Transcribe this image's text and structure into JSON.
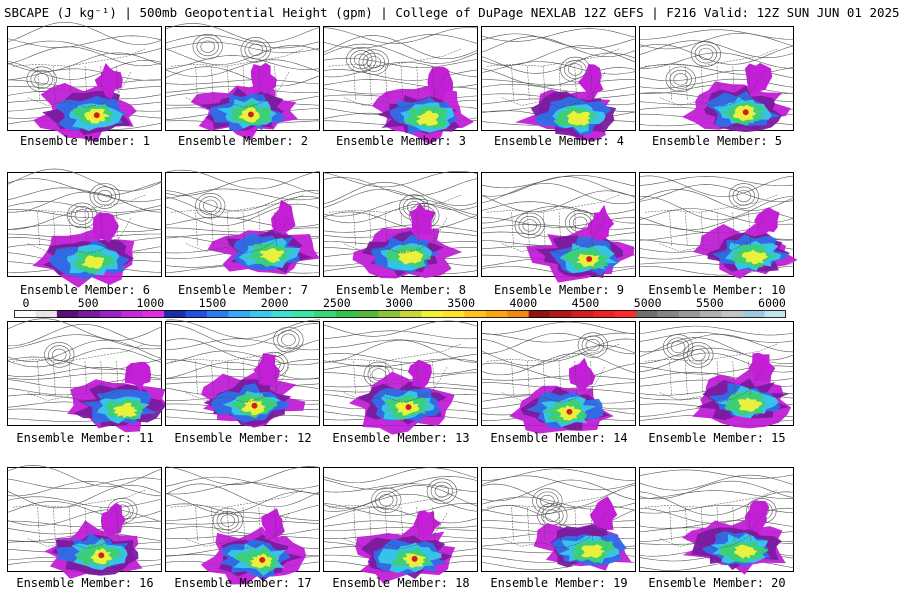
{
  "header": {
    "title": "SBCAPE (J kg⁻¹) | 500mb Geopotential Height (gpm) | College of DuPage NEXLAB 12Z GEFS | F216 Valid: 12Z SUN JUN 01 2025"
  },
  "colorbar": {
    "ticks": [
      "0",
      "500",
      "1000",
      "1500",
      "2000",
      "2500",
      "3000",
      "3500",
      "4000",
      "4500",
      "5000",
      "5500",
      "6000"
    ],
    "colors": [
      "#ffffff",
      "#e6e6e6",
      "#5a0f75",
      "#7a1aa0",
      "#9a22c6",
      "#c52ad8",
      "#e22ee3",
      "#1b2ea8",
      "#2450e0",
      "#2f7cf0",
      "#38a9f5",
      "#3cc8ee",
      "#3fe0d0",
      "#3ee3a6",
      "#3bd67a",
      "#34c44c",
      "#58b43a",
      "#8ec23a",
      "#c8d63a",
      "#f2f23a",
      "#ffe02a",
      "#ffc21e",
      "#ffa414",
      "#f08a12",
      "#8f1414",
      "#b31818",
      "#d21e1e",
      "#ea2424",
      "#ff2a2a",
      "#6e6e6e",
      "#848484",
      "#9a9a9a",
      "#b0b0b0",
      "#c4c4c4",
      "#9ec8dc",
      "#c4e2f0"
    ]
  },
  "panels": [
    {
      "label": "Ensemble Member: 1"
    },
    {
      "label": "Ensemble Member: 2"
    },
    {
      "label": "Ensemble Member: 3"
    },
    {
      "label": "Ensemble Member: 4"
    },
    {
      "label": "Ensemble Member: 5"
    },
    {
      "label": "Ensemble Member: 6"
    },
    {
      "label": "Ensemble Member: 7"
    },
    {
      "label": "Ensemble Member: 8"
    },
    {
      "label": "Ensemble Member: 9"
    },
    {
      "label": "Ensemble Member: 10"
    },
    {
      "label": "Ensemble Member: 11"
    },
    {
      "label": "Ensemble Member: 12"
    },
    {
      "label": "Ensemble Member: 13"
    },
    {
      "label": "Ensemble Member: 14"
    },
    {
      "label": "Ensemble Member: 15"
    },
    {
      "label": "Ensemble Member: 16"
    },
    {
      "label": "Ensemble Member: 17"
    },
    {
      "label": "Ensemble Member: 18"
    },
    {
      "label": "Ensemble Member: 19"
    },
    {
      "label": "Ensemble Member: 20"
    }
  ],
  "field_colors": {
    "magenta": "#c21fd6",
    "purple": "#7a1aa0",
    "blue": "#2f6fe8",
    "cyan": "#38c8e8",
    "green": "#3ccf72",
    "yellow": "#f2f23a",
    "red": "#d21e1e",
    "contour": "#555555",
    "border": "#444444"
  }
}
